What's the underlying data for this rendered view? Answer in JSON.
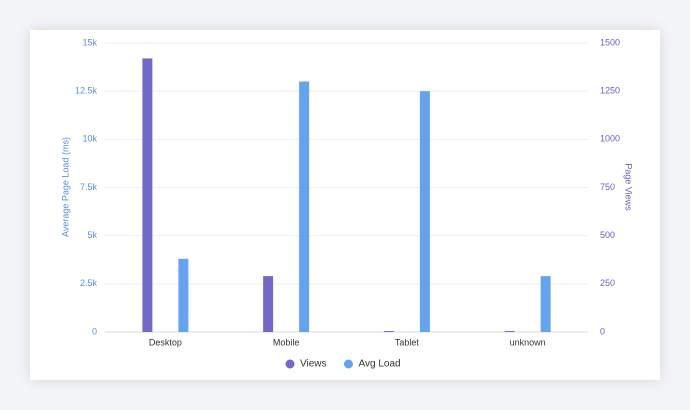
{
  "chart_data": {
    "type": "bar",
    "categories": [
      "Desktop",
      "Mobile",
      "Tablet",
      "unknown"
    ],
    "series": [
      {
        "name": "Views",
        "color": "#7469c6",
        "axis": "y2",
        "values": [
          1420,
          290,
          5,
          5
        ]
      },
      {
        "name": "Avg Load",
        "color": "#66a3ee",
        "values": [
          3800,
          13000,
          12500,
          2900
        ]
      }
    ],
    "ylabel": "Average Page Load (ms)",
    "y2label": "Page Views",
    "ylim": [
      0,
      15000
    ],
    "yticks": [
      0,
      {
        "value": 2500,
        "label": "2.5k"
      },
      {
        "value": 5000,
        "label": "5k"
      },
      {
        "value": 7500,
        "label": "7.5k"
      },
      {
        "value": 10000,
        "label": "10k"
      },
      {
        "value": 12500,
        "label": "12.5k"
      },
      {
        "value": 15000,
        "label": "15k"
      }
    ],
    "y2lim": [
      0,
      1500
    ],
    "y2ticks": [
      0,
      250,
      500,
      750,
      1000,
      1250,
      1500
    ],
    "grid": true,
    "legend": "bottom"
  }
}
